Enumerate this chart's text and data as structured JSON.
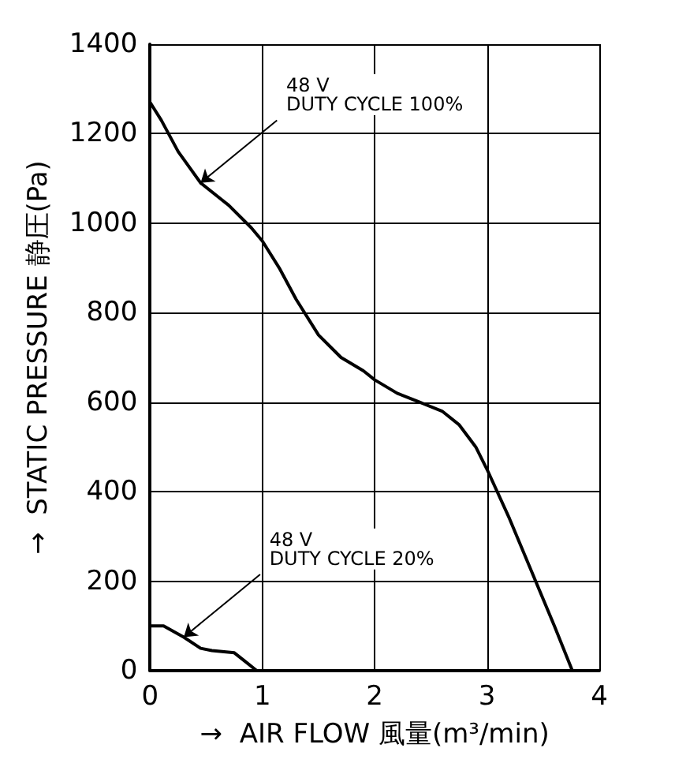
{
  "chart_data": {
    "type": "line",
    "xlabel": "→  AIR FLOW 風量(m³/min)",
    "ylabel": "→  STATIC PRESSURE 静圧(Pa)",
    "xlim": [
      0,
      4
    ],
    "xticks": [
      0,
      1,
      2,
      3,
      4
    ],
    "ylim": [
      0,
      1400
    ],
    "yticks": [
      0,
      200,
      400,
      600,
      800,
      1000,
      1200,
      1400
    ],
    "grid": true,
    "marker": "none",
    "line_style": "solid",
    "series": [
      {
        "color": "#000000",
        "x": [
          0,
          0.1,
          0.25,
          0.45,
          0.7,
          0.9,
          1.0,
          1.15,
          1.3,
          1.5,
          1.7,
          1.9,
          2.0,
          2.2,
          2.4,
          2.6,
          2.75,
          2.9,
          3.0,
          3.2,
          3.4,
          3.6,
          3.76
        ],
        "values": [
          1270,
          1230,
          1160,
          1090,
          1040,
          990,
          960,
          900,
          830,
          750,
          700,
          670,
          650,
          620,
          600,
          580,
          550,
          500,
          450,
          340,
          220,
          100,
          0
        ]
      },
      {
        "color": "#000000",
        "x": [
          0,
          0.12,
          0.3,
          0.45,
          0.55,
          0.75,
          0.85,
          0.95
        ],
        "values": [
          100,
          100,
          75,
          50,
          45,
          40,
          20,
          0
        ]
      }
    ],
    "annotations": [
      {
        "text": "48 V\nDUTY CYCLE 100%",
        "x": 0.45,
        "y": 1090
      },
      {
        "text": "48 V\nDUTY CYCLE 20%",
        "x": 0.3,
        "y": 75
      }
    ]
  }
}
